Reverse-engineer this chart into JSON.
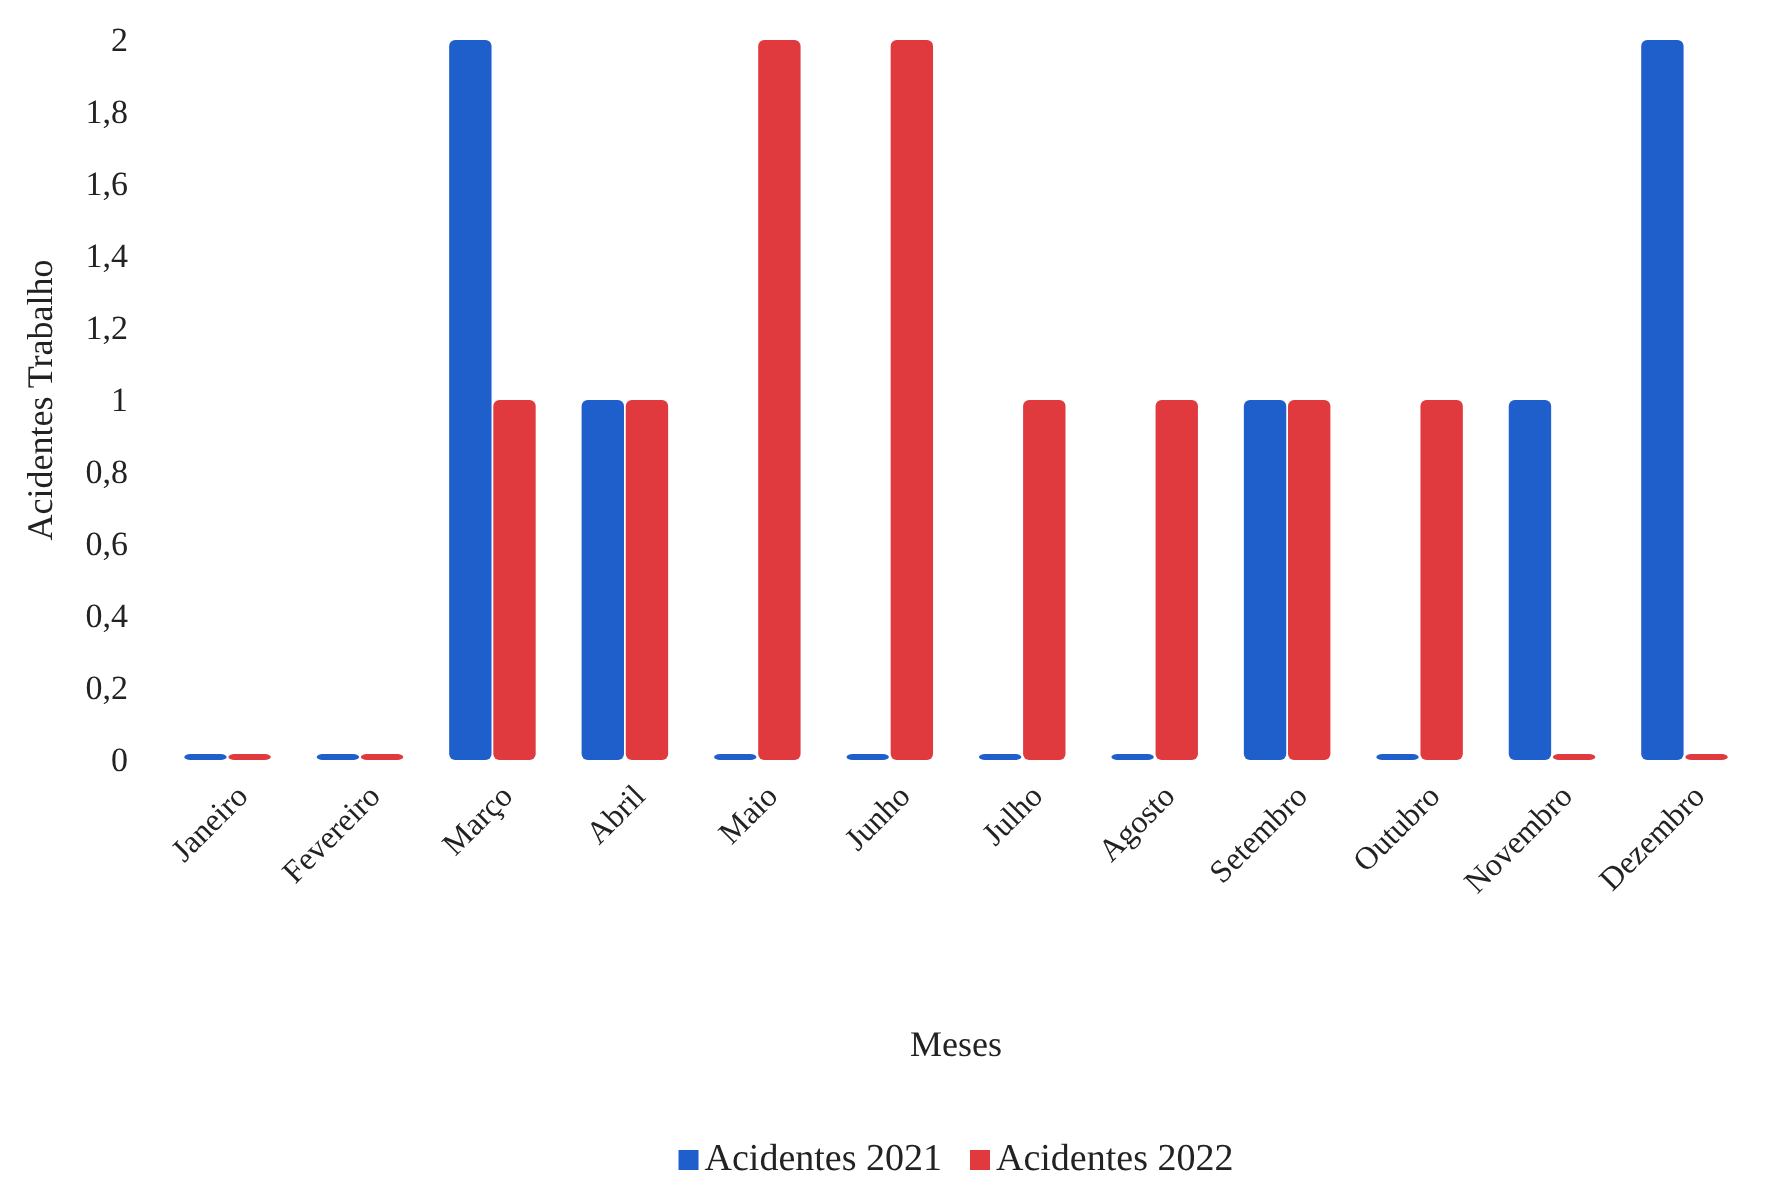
{
  "chart_data": {
    "type": "bar",
    "xlabel": "Meses",
    "ylabel": "Acidentes Trabalho",
    "categories": [
      "Janeiro",
      "Fevereiro",
      "Março",
      "Abril",
      "Maio",
      "Junho",
      "Julho",
      "Agosto",
      "Setembro",
      "Outubro",
      "Novembro",
      "Dezembro"
    ],
    "series": [
      {
        "name": "Acidentes 2021",
        "color": "#1f5fcc",
        "values": [
          0,
          0,
          2,
          1,
          0,
          0,
          0,
          0,
          1,
          0,
          1,
          2
        ]
      },
      {
        "name": "Acidentes 2022",
        "color": "#e03a3e",
        "values": [
          0,
          0,
          1,
          1,
          2,
          2,
          1,
          1,
          1,
          1,
          0,
          0
        ]
      }
    ],
    "ylim": [
      0,
      2
    ],
    "yticks": [
      0,
      {
        "value": 0.2,
        "label": "0,2"
      },
      {
        "value": 0.4,
        "label": "0,4"
      },
      {
        "value": 0.6,
        "label": "0,6"
      },
      {
        "value": 0.8,
        "label": "0,8"
      },
      1,
      {
        "value": 1.2,
        "label": "1,2"
      },
      {
        "value": 1.4,
        "label": "1,4"
      },
      {
        "value": 1.6,
        "label": "1,6"
      },
      {
        "value": 1.8,
        "label": "1,8"
      },
      2
    ],
    "grid": false,
    "legend": "bottom"
  }
}
